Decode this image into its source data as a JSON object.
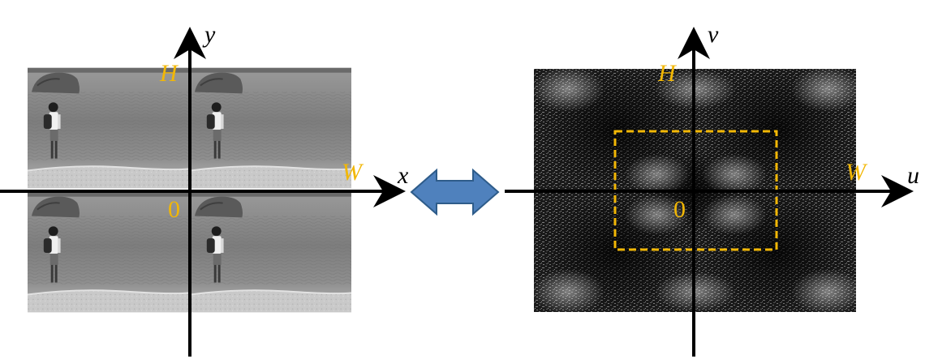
{
  "left_panel": {
    "axis_x_label": "x",
    "axis_y_label": "y",
    "height_label": "H",
    "width_label": "W",
    "origin_label": "0"
  },
  "right_panel": {
    "axis_u_label": "u",
    "axis_v_label": "v",
    "height_label": "H",
    "width_label": "W",
    "origin_label": "0"
  },
  "connector": {
    "icon": "double-arrow-icon",
    "color": "#4f81bd"
  },
  "colors": {
    "label": "#f2b705",
    "axis": "#000000",
    "dashed_box": "#f2b705"
  }
}
